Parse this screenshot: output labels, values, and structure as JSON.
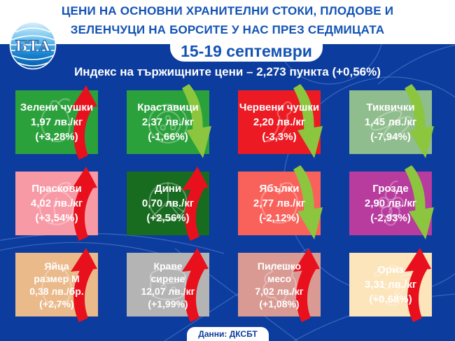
{
  "header": {
    "title_line1": "ЦЕНИ НА ОСНОВНИ ХРАНИТЕЛНИ СТОКИ, ПЛОДОВЕ И",
    "title_line2": "ЗЕЛЕНЧУЦИ НА БОРСИТЕ У НАС ПРЕЗ СЕДМИЦАТА",
    "date_range": "15-19 септември",
    "logo_text": "БТА"
  },
  "index_line": "Индекс на тържищните цени – 2,273 пункта (+0,56%)",
  "footer": {
    "source_label": "Данни: ДКСБТ"
  },
  "colors": {
    "background": "#0c3c9e",
    "header_text": "#1353b5",
    "arrow_up": "#e8101d",
    "arrow_down": "#8cc63f",
    "tile_text": "#ffffff"
  },
  "tiles": [
    {
      "name_lines": [
        "Зелени чушки"
      ],
      "price": "1,97 лв./кг",
      "change": "(+3,28%)",
      "direction": "up",
      "bg": "#2ba13c",
      "icon": "green-pepper"
    },
    {
      "name_lines": [
        "Краставици"
      ],
      "price": "2,37 лв./кг",
      "change": "(-1,66%)",
      "direction": "down",
      "bg": "#2ba13c",
      "icon": "cucumber"
    },
    {
      "name_lines": [
        "Червени чушки"
      ],
      "price": "2,20 лв./кг",
      "change": "(-3,3%)",
      "direction": "down",
      "bg": "#ec1b23",
      "icon": "red-pepper"
    },
    {
      "name_lines": [
        "Тиквички"
      ],
      "price": "1,45 лв./кг",
      "change": "(-7,94%)",
      "direction": "down",
      "bg": "#8fbd8d",
      "icon": "zucchini"
    },
    {
      "name_lines": [
        "Праскови"
      ],
      "price": "4,02 лв./кг",
      "change": "(+3,54%)",
      "direction": "up",
      "bg": "#f89aa6",
      "icon": "peach"
    },
    {
      "name_lines": [
        "Дини"
      ],
      "price": "0,70 лв./кг",
      "change": "(+2,56%)",
      "direction": "up",
      "bg": "#186c1f",
      "icon": "watermelon"
    },
    {
      "name_lines": [
        "Ябълки"
      ],
      "price": "2,77 лв./кг",
      "change": "(-2,12%)",
      "direction": "down",
      "bg": "#f9625b",
      "icon": "apple"
    },
    {
      "name_lines": [
        "Грозде"
      ],
      "price": "2,90 лв./кг",
      "change": "(-2,93%)",
      "direction": "down",
      "bg": "#b83b9e",
      "icon": "grapes"
    },
    {
      "name_lines": [
        "Яйца",
        "размер М"
      ],
      "price": "0,38 лв./бр.",
      "change": "(+2,7%)",
      "direction": "up",
      "bg": "#eaba8b",
      "icon": "egg"
    },
    {
      "name_lines": [
        "Краве",
        "сирене"
      ],
      "price": "12,07 лв./кг",
      "change": "(+1,99%)",
      "direction": "up",
      "bg": "#b5b4b4",
      "icon": "cheese"
    },
    {
      "name_lines": [
        "Пилешко",
        "месо"
      ],
      "price": "7,02 лв./кг",
      "change": "(+1,08%)",
      "direction": "up",
      "bg": "#d99a93",
      "icon": "chicken"
    },
    {
      "name_lines": [
        "Ориз"
      ],
      "price": "3,31 лв./кг",
      "change": "(+0,68%)",
      "direction": "up",
      "bg": "#fce4bb",
      "icon": "rice"
    }
  ],
  "chart_data": {
    "type": "table",
    "title": "ЦЕНИ НА ОСНОВНИ ХРАНИТЕЛНИ СТОКИ, ПЛОДОВЕ И ЗЕЛЕНЧУЦИ НА БОРСИТЕ У НАС ПРЕЗ СЕДМИЦАТА",
    "subtitle": "15-19 септември",
    "index": {
      "label": "Индекс на тържищните цени",
      "value_points": 2.273,
      "change_pct": 0.56
    },
    "source": "Данни: ДКСБТ",
    "columns": [
      "product",
      "price_lv",
      "unit",
      "change_pct"
    ],
    "rows": [
      [
        "Зелени чушки",
        1.97,
        "лв./кг",
        3.28
      ],
      [
        "Краставици",
        2.37,
        "лв./кг",
        -1.66
      ],
      [
        "Червени чушки",
        2.2,
        "лв./кг",
        -3.3
      ],
      [
        "Тиквички",
        1.45,
        "лв./кг",
        -7.94
      ],
      [
        "Праскови",
        4.02,
        "лв./кг",
        3.54
      ],
      [
        "Дини",
        0.7,
        "лв./кг",
        2.56
      ],
      [
        "Ябълки",
        2.77,
        "лв./кг",
        -2.12
      ],
      [
        "Грозде",
        2.9,
        "лв./кг",
        -2.93
      ],
      [
        "Яйца размер М",
        0.38,
        "лв./бр.",
        2.7
      ],
      [
        "Краве сирене",
        12.07,
        "лв./кг",
        1.99
      ],
      [
        "Пилешко месо",
        7.02,
        "лв./кг",
        1.08
      ],
      [
        "Ориз",
        3.31,
        "лв./кг",
        0.68
      ]
    ]
  }
}
